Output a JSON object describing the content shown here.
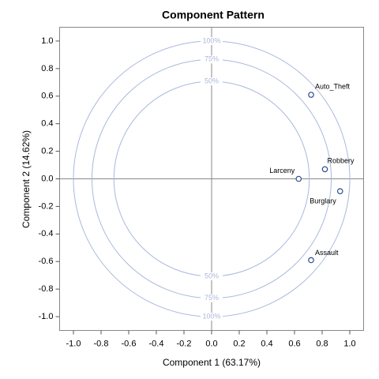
{
  "chart_data": {
    "type": "scatter",
    "title": "Component Pattern",
    "x_label": "Component 1 (63.17%)",
    "y_label": "Component 2 (14.62%)",
    "point_labels": [
      "Auto_Theft",
      "Robbery",
      "Larceny",
      "Burglary",
      "Assault"
    ],
    "x": [
      0.72,
      0.82,
      0.63,
      0.93,
      0.72
    ],
    "values": [
      0.61,
      0.07,
      0.0,
      -0.09,
      -0.59
    ],
    "color": "#2a4b8c",
    "circles": [
      {
        "value": 100,
        "label": "100%"
      },
      {
        "value": 75,
        "label": "75%"
      },
      {
        "value": 50,
        "label": "50%"
      }
    ],
    "circle_color": "#a9b8dc",
    "xlim": [
      -1.1,
      1.1
    ],
    "ylim": [
      -1.1,
      1.1
    ],
    "xticks": [
      {
        "value": -1,
        "label": "-1.0"
      },
      -0.8,
      -0.6,
      -0.4,
      -0.2,
      {
        "value": 0,
        "label": "0.0"
      },
      0.2,
      0.4,
      0.6,
      0.8,
      {
        "value": 1,
        "label": "1.0"
      }
    ],
    "yticks": [
      {
        "value": -1,
        "label": "-1.0"
      },
      -0.8,
      -0.6,
      -0.4,
      -0.2,
      {
        "value": 0,
        "label": "0.0"
      },
      0.2,
      0.4,
      0.6,
      0.8,
      {
        "value": 1,
        "label": "1.0"
      }
    ]
  }
}
